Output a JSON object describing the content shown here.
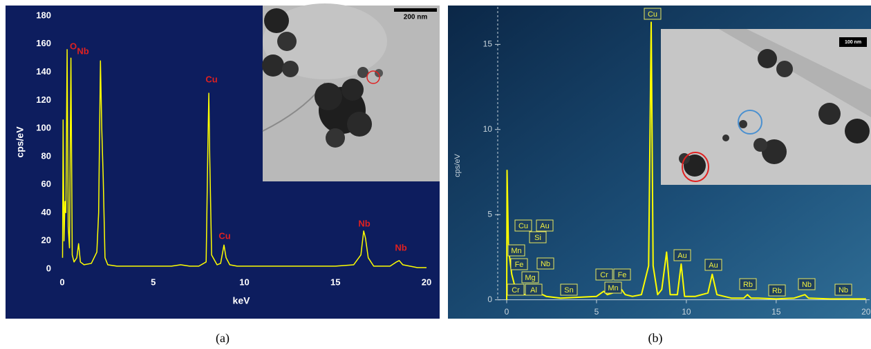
{
  "chart_data": [
    {
      "type": "line",
      "caption": "(a)",
      "xlabel": "keV",
      "ylabel": "cps/eV",
      "color": "#ffff00",
      "xlim": [
        0,
        20
      ],
      "ylim": [
        0,
        180
      ],
      "xticks": [
        0,
        5,
        10,
        15,
        20
      ],
      "yticks": [
        0,
        20,
        40,
        60,
        80,
        100,
        120,
        140,
        160,
        180
      ],
      "x": [
        0.02,
        0.05,
        0.1,
        0.15,
        0.2,
        0.27,
        0.33,
        0.4,
        0.48,
        0.55,
        0.65,
        0.8,
        0.9,
        1.0,
        1.2,
        1.6,
        1.9,
        2.0,
        2.1,
        2.17,
        2.25,
        2.35,
        2.5,
        3,
        4,
        5,
        6,
        6.5,
        7,
        7.5,
        7.9,
        8.0,
        8.05,
        8.1,
        8.2,
        8.5,
        8.7,
        8.88,
        9.0,
        9.2,
        9.6,
        10,
        11,
        12,
        13,
        14,
        15,
        16,
        16.4,
        16.55,
        16.65,
        16.8,
        17.1,
        18,
        18.35,
        18.5,
        18.7,
        19.5,
        20
      ],
      "values": [
        8,
        106,
        20,
        48,
        40,
        156,
        30,
        15,
        150,
        10,
        5,
        8,
        18,
        5,
        3,
        4,
        12,
        40,
        148,
        100,
        65,
        8,
        3,
        2,
        2,
        2,
        2,
        3,
        2,
        2,
        5,
        90,
        125,
        80,
        10,
        3,
        4,
        17,
        8,
        3,
        2,
        2,
        2,
        2,
        2,
        2,
        2,
        3,
        10,
        27,
        22,
        8,
        2,
        2,
        5,
        6,
        3,
        1,
        1
      ],
      "annotations": [
        "O",
        "Nb",
        "Cu",
        "Cu",
        "Nb",
        "Nb"
      ],
      "inset_label": "200 nm"
    },
    {
      "type": "line",
      "caption": "(b)",
      "ylabel": "cps/eV",
      "color": "#ffff00",
      "xlim": [
        -0.5,
        20.2
      ],
      "ylim": [
        -0.5,
        17.2
      ],
      "xticks": [
        0,
        5,
        10,
        15,
        20
      ],
      "yticks": [
        0,
        5,
        10,
        15
      ],
      "x": [
        0,
        0.02,
        0.1,
        0.28,
        0.5,
        0.7,
        1.0,
        1.25,
        1.5,
        1.75,
        2.0,
        2.2,
        3,
        4,
        5,
        5.4,
        5.6,
        5.9,
        6.4,
        6.6,
        7.0,
        7.5,
        7.9,
        8.04,
        8.15,
        8.4,
        8.63,
        8.9,
        9.1,
        9.5,
        9.71,
        9.9,
        10.5,
        11.2,
        11.44,
        11.7,
        12.5,
        13.2,
        13.4,
        13.6,
        14,
        15,
        16,
        16.6,
        16.8,
        18,
        20
      ],
      "values": [
        0,
        7.6,
        3,
        1.5,
        0.6,
        0.4,
        0.3,
        0.4,
        0.3,
        0.3,
        0.3,
        0.2,
        0.1,
        0.15,
        0.2,
        0.5,
        0.3,
        0.4,
        0.6,
        0.3,
        0.2,
        0.3,
        2,
        16.3,
        2,
        0.3,
        0.6,
        2.8,
        0.3,
        0.3,
        2.1,
        0.2,
        0.2,
        0.4,
        1.5,
        0.3,
        0.1,
        0.1,
        0.3,
        0.1,
        0.1,
        0.05,
        0.1,
        0.3,
        0.1,
        0.05,
        0.05
      ],
      "annotations": [
        "Cu",
        "Cu",
        "Au",
        "Mn",
        "Si",
        "Fe",
        "Nb",
        "Mg",
        "Cr",
        "Al",
        "Sn",
        "Cr",
        "Fe",
        "Mn",
        "Au",
        "Au",
        "Rb",
        "Rb",
        "Nb",
        "Nb"
      ],
      "inset_label": "100 nm"
    }
  ]
}
